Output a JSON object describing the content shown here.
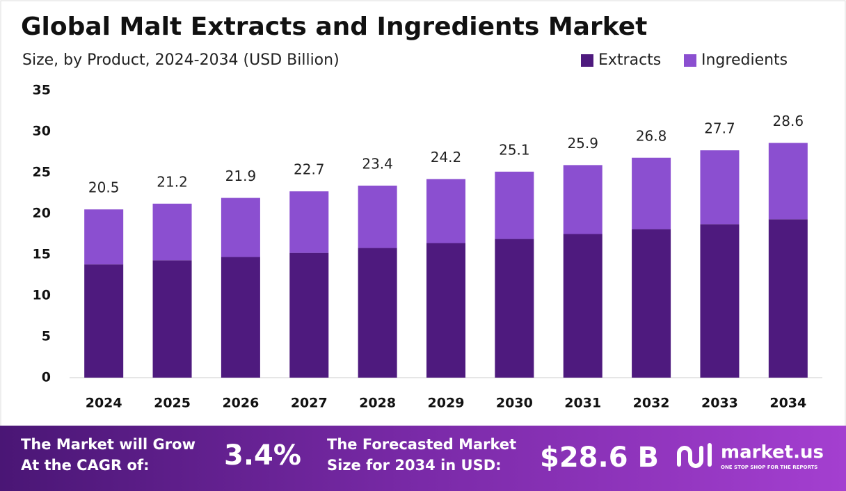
{
  "chart_data": {
    "type": "stacked_bar",
    "title": "Global Malt Extracts and Ingredients Market",
    "subtitle": "Size, by Product, 2024-2034 (USD Billion)",
    "categories": [
      "2024",
      "2025",
      "2026",
      "2027",
      "2028",
      "2029",
      "2030",
      "2031",
      "2032",
      "2033",
      "2034"
    ],
    "series": [
      {
        "name": "Extracts",
        "color": "#4e1a7e",
        "values": [
          13.8,
          14.3,
          14.7,
          15.2,
          15.8,
          16.4,
          16.9,
          17.5,
          18.1,
          18.7,
          19.3
        ]
      },
      {
        "name": "Ingredients",
        "color": "#8b4fd0",
        "values": [
          6.7,
          6.9,
          7.2,
          7.5,
          7.6,
          7.8,
          8.2,
          8.4,
          8.7,
          9.0,
          9.3
        ]
      }
    ],
    "totals": [
      20.5,
      21.2,
      21.9,
      22.7,
      23.4,
      24.2,
      25.1,
      25.9,
      26.8,
      27.7,
      28.6
    ],
    "ylim": [
      0,
      35
    ],
    "yticks": [
      0,
      5,
      10,
      15,
      20,
      25,
      30,
      35
    ],
    "grid": false,
    "legend": "top-right"
  },
  "footer": {
    "cagr_text_1": "The Market will Grow",
    "cagr_text_2": "At the CAGR of:",
    "cagr_value": "3.4%",
    "forecast_text_1": "The Forecasted Market",
    "forecast_text_2": "Size for 2034 in USD:",
    "forecast_value": "$28.6 B",
    "brand": "market.us",
    "tagline": "ONE STOP SHOP FOR THE REPORTS"
  }
}
